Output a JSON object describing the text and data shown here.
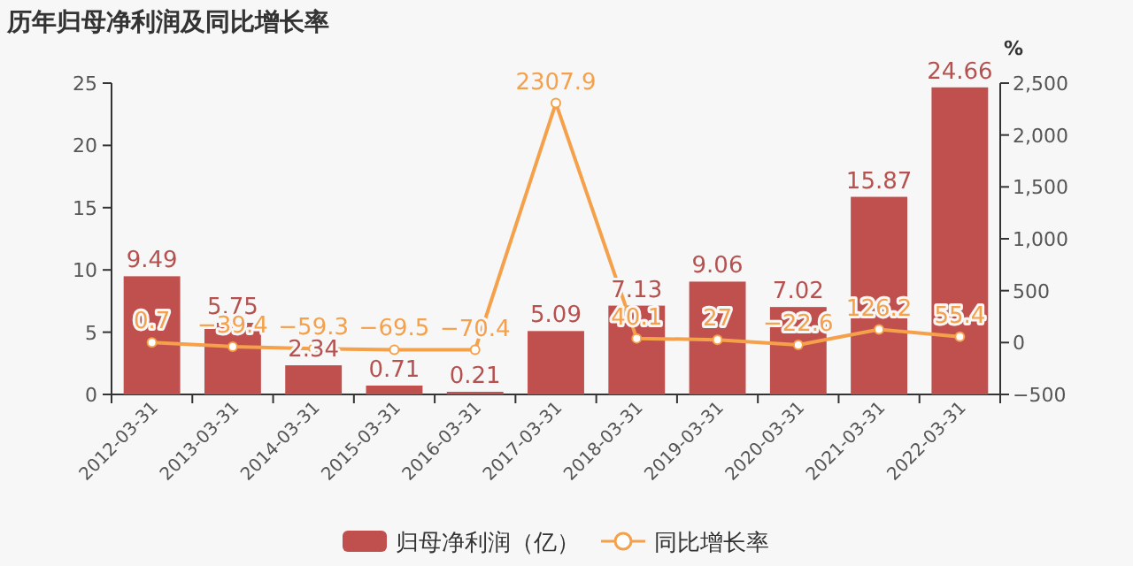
{
  "chart_data": {
    "type": "bar",
    "title": "历年归母净利润及同比增长率",
    "categories": [
      "2012-03-31",
      "2013-03-31",
      "2014-03-31",
      "2015-03-31",
      "2016-03-31",
      "2017-03-31",
      "2018-03-31",
      "2019-03-31",
      "2020-03-31",
      "2021-03-31",
      "2022-03-31"
    ],
    "series": [
      {
        "name": "归母净利润（亿）",
        "color": "#c0504d",
        "values": [
          9.49,
          5.75,
          2.34,
          0.71,
          0.21,
          5.09,
          7.13,
          9.06,
          7.02,
          15.87,
          24.66
        ]
      },
      {
        "name": "同比增长率",
        "type": "line",
        "axis": "y2",
        "marker": "circle",
        "color": "#f5a04a",
        "values": [
          0.7,
          -39.4,
          -59.3,
          -69.5,
          -70.4,
          2307.9,
          40.1,
          27,
          -22.6,
          126.2,
          55.4
        ]
      }
    ],
    "ylim": [
      0,
      25
    ],
    "yticks": [
      0,
      5,
      10,
      15,
      20,
      25
    ],
    "y2label": "%",
    "y2lim": [
      -500,
      2500
    ],
    "y2ticks": [
      {
        "value": -500,
        "label": "−500"
      },
      0,
      {
        "value": 500,
        "label": "500"
      },
      {
        "value": 1000,
        "label": "1,000"
      },
      {
        "value": 1500,
        "label": "1,500"
      },
      {
        "value": 2000,
        "label": "2,000"
      },
      {
        "value": 2500,
        "label": "2,500"
      }
    ],
    "data_labels": true,
    "grid": false,
    "legend": "bottom"
  }
}
